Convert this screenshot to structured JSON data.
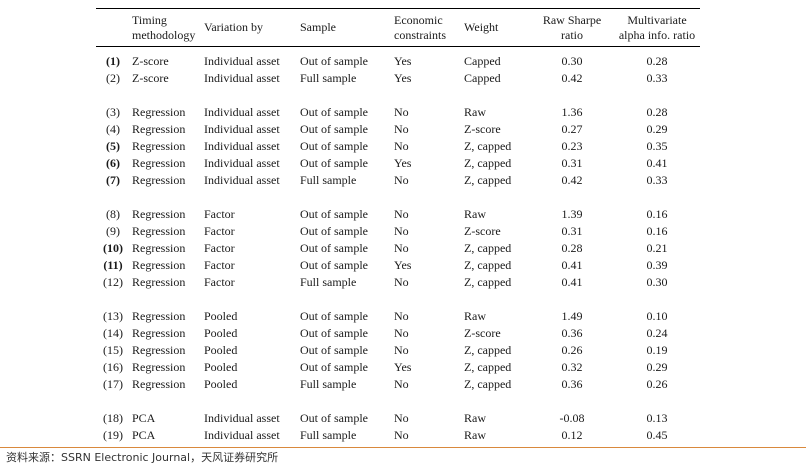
{
  "table": {
    "headers": {
      "timing_methodology": [
        "Timing",
        "methodology"
      ],
      "variation_by": "Variation by",
      "sample": "Sample",
      "economic_constraints": [
        "Economic",
        "constraints"
      ],
      "weight": "Weight",
      "raw_sharpe_ratio": [
        "Raw Sharpe",
        "ratio"
      ],
      "multivariate_alpha_info_ratio": [
        "Multivariate",
        "alpha info. ratio"
      ]
    },
    "groups": [
      [
        {
          "id": "(1)",
          "bold": true,
          "method": "Z-score",
          "variation": "Individual asset",
          "sample": "Out of sample",
          "constraints": "Yes",
          "weight": "Capped",
          "sharpe": "0.30",
          "alpha": "0.28"
        },
        {
          "id": "(2)",
          "bold": false,
          "method": "Z-score",
          "variation": "Individual asset",
          "sample": "Full sample",
          "constraints": "Yes",
          "weight": "Capped",
          "sharpe": "0.42",
          "alpha": "0.33"
        }
      ],
      [
        {
          "id": "(3)",
          "bold": false,
          "method": "Regression",
          "variation": "Individual asset",
          "sample": "Out of sample",
          "constraints": "No",
          "weight": "Raw",
          "sharpe": "1.36",
          "alpha": "0.28"
        },
        {
          "id": "(4)",
          "bold": false,
          "method": "Regression",
          "variation": "Individual asset",
          "sample": "Out of sample",
          "constraints": "No",
          "weight": "Z-score",
          "sharpe": "0.27",
          "alpha": "0.29"
        },
        {
          "id": "(5)",
          "bold": true,
          "method": "Regression",
          "variation": "Individual asset",
          "sample": "Out of sample",
          "constraints": "No",
          "weight": "Z, capped",
          "sharpe": "0.23",
          "alpha": "0.35"
        },
        {
          "id": "(6)",
          "bold": true,
          "method": "Regression",
          "variation": "Individual asset",
          "sample": "Out of sample",
          "constraints": "Yes",
          "weight": "Z, capped",
          "sharpe": "0.31",
          "alpha": "0.41"
        },
        {
          "id": "(7)",
          "bold": true,
          "method": "Regression",
          "variation": "Individual asset",
          "sample": "Full sample",
          "constraints": "No",
          "weight": "Z, capped",
          "sharpe": "0.42",
          "alpha": "0.33"
        }
      ],
      [
        {
          "id": "(8)",
          "bold": false,
          "method": "Regression",
          "variation": "Factor",
          "sample": "Out of sample",
          "constraints": "No",
          "weight": "Raw",
          "sharpe": "1.39",
          "alpha": "0.16"
        },
        {
          "id": "(9)",
          "bold": false,
          "method": "Regression",
          "variation": "Factor",
          "sample": "Out of sample",
          "constraints": "No",
          "weight": "Z-score",
          "sharpe": "0.31",
          "alpha": "0.16"
        },
        {
          "id": "(10)",
          "bold": true,
          "method": "Regression",
          "variation": "Factor",
          "sample": "Out of sample",
          "constraints": "No",
          "weight": "Z, capped",
          "sharpe": "0.28",
          "alpha": "0.21"
        },
        {
          "id": "(11)",
          "bold": true,
          "method": "Regression",
          "variation": "Factor",
          "sample": "Out of sample",
          "constraints": "Yes",
          "weight": "Z, capped",
          "sharpe": "0.41",
          "alpha": "0.39"
        },
        {
          "id": "(12)",
          "bold": false,
          "method": "Regression",
          "variation": "Factor",
          "sample": "Full sample",
          "constraints": "No",
          "weight": "Z, capped",
          "sharpe": "0.41",
          "alpha": "0.30"
        }
      ],
      [
        {
          "id": "(13)",
          "bold": false,
          "method": "Regression",
          "variation": "Pooled",
          "sample": "Out of sample",
          "constraints": "No",
          "weight": "Raw",
          "sharpe": "1.49",
          "alpha": "0.10"
        },
        {
          "id": "(14)",
          "bold": false,
          "method": "Regression",
          "variation": "Pooled",
          "sample": "Out of sample",
          "constraints": "No",
          "weight": "Z-score",
          "sharpe": "0.36",
          "alpha": "0.24"
        },
        {
          "id": "(15)",
          "bold": false,
          "method": "Regression",
          "variation": "Pooled",
          "sample": "Out of sample",
          "constraints": "No",
          "weight": "Z, capped",
          "sharpe": "0.26",
          "alpha": "0.19"
        },
        {
          "id": "(16)",
          "bold": false,
          "method": "Regression",
          "variation": "Pooled",
          "sample": "Out of sample",
          "constraints": "Yes",
          "weight": "Z, capped",
          "sharpe": "0.32",
          "alpha": "0.29"
        },
        {
          "id": "(17)",
          "bold": false,
          "method": "Regression",
          "variation": "Pooled",
          "sample": "Full sample",
          "constraints": "No",
          "weight": "Z, capped",
          "sharpe": "0.36",
          "alpha": "0.26"
        }
      ],
      [
        {
          "id": "(18)",
          "bold": false,
          "method": "PCA",
          "variation": "Individual asset",
          "sample": "Out of sample",
          "constraints": "No",
          "weight": "Raw",
          "sharpe": "-0.08",
          "alpha": "0.13"
        },
        {
          "id": "(19)",
          "bold": false,
          "method": "PCA",
          "variation": "Individual asset",
          "sample": "Full sample",
          "constraints": "No",
          "weight": "Raw",
          "sharpe": "0.12",
          "alpha": "0.45"
        }
      ]
    ]
  },
  "footer": {
    "source": "资料来源：SSRN Electronic Journal，天风证券研究所"
  },
  "colors": {
    "rule": "#d9893d",
    "text": "#1a1a1a"
  }
}
